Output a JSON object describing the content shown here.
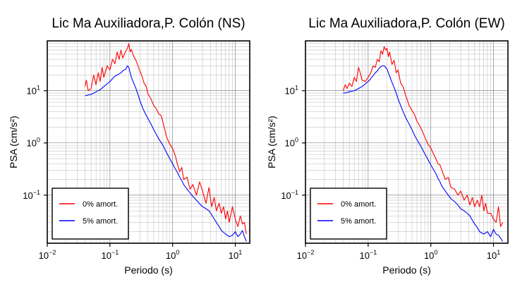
{
  "chart_data": [
    {
      "type": "line",
      "title": "Lic Ma Auxiliadora,P. Colón (NS)",
      "xlabel": "Periodo (s)",
      "ylabel": "PSA (cm/s²)",
      "xscale": "log",
      "yscale": "log",
      "xlim": [
        0.01,
        17
      ],
      "ylim": [
        0.012,
        90
      ],
      "grid": true,
      "legend_position": "lower-left",
      "x_ticks": [
        {
          "value": 0.01,
          "base": "10",
          "exp": "−2"
        },
        {
          "value": 0.1,
          "base": "10",
          "exp": "−1"
        },
        {
          "value": 1,
          "base": "10",
          "exp": "0"
        },
        {
          "value": 10,
          "base": "10",
          "exp": "1"
        }
      ],
      "y_ticks": [
        {
          "value": 0.1,
          "base": "10",
          "exp": "−1"
        },
        {
          "value": 1,
          "base": "10",
          "exp": "0"
        },
        {
          "value": 10,
          "base": "10",
          "exp": "1"
        }
      ],
      "series": [
        {
          "name": "0% amort.",
          "color": "#ff0000",
          "x": [
            0.04,
            0.042,
            0.045,
            0.05,
            0.055,
            0.06,
            0.065,
            0.07,
            0.075,
            0.08,
            0.09,
            0.1,
            0.11,
            0.12,
            0.13,
            0.14,
            0.15,
            0.16,
            0.17,
            0.18,
            0.19,
            0.2,
            0.21,
            0.22,
            0.24,
            0.26,
            0.28,
            0.3,
            0.32,
            0.35,
            0.38,
            0.4,
            0.45,
            0.5,
            0.55,
            0.6,
            0.65,
            0.7,
            0.75,
            0.8,
            0.9,
            1.0,
            1.1,
            1.2,
            1.3,
            1.4,
            1.5,
            1.7,
            1.9,
            2.1,
            2.4,
            2.7,
            3.0,
            3.4,
            3.8,
            4.2,
            4.6,
            5.0,
            5.5,
            6.0,
            6.5,
            7.0,
            7.5,
            8.0,
            9.0,
            10.0,
            11.0,
            12.0,
            13.0,
            14.0,
            15.0
          ],
          "y": [
            12,
            16,
            10,
            11,
            20,
            13,
            22,
            15,
            28,
            18,
            30,
            25,
            40,
            33,
            55,
            40,
            60,
            42,
            50,
            58,
            65,
            80,
            55,
            62,
            45,
            38,
            30,
            24,
            20,
            14,
            12,
            9,
            7,
            5.2,
            4.5,
            3.6,
            3.4,
            2.5,
            1.8,
            1.3,
            0.95,
            0.78,
            0.58,
            0.38,
            0.28,
            0.34,
            0.2,
            0.22,
            0.13,
            0.16,
            0.1,
            0.18,
            0.12,
            0.07,
            0.14,
            0.06,
            0.09,
            0.05,
            0.07,
            0.045,
            0.06,
            0.035,
            0.05,
            0.03,
            0.06,
            0.035,
            0.025,
            0.04,
            0.028,
            0.03,
            0.018
          ]
        },
        {
          "name": "5% amort.",
          "color": "#0000ff",
          "x": [
            0.04,
            0.045,
            0.05,
            0.055,
            0.06,
            0.07,
            0.08,
            0.09,
            0.1,
            0.11,
            0.12,
            0.13,
            0.14,
            0.15,
            0.16,
            0.17,
            0.18,
            0.19,
            0.2,
            0.21,
            0.22,
            0.24,
            0.26,
            0.28,
            0.3,
            0.33,
            0.36,
            0.4,
            0.45,
            0.5,
            0.55,
            0.6,
            0.7,
            0.8,
            0.9,
            1.0,
            1.1,
            1.2,
            1.3,
            1.4,
            1.5,
            1.7,
            1.9,
            2.1,
            2.4,
            2.7,
            3.0,
            3.4,
            3.8,
            4.2,
            4.6,
            5.0,
            5.5,
            6.0,
            7.0,
            8.0,
            9.0,
            10.0,
            11.0,
            12.0,
            13.0,
            14.0,
            15.0
          ],
          "y": [
            8,
            8.3,
            8.5,
            9,
            9.5,
            10.5,
            12,
            13.5,
            15,
            17,
            19,
            20,
            21,
            22,
            24,
            25,
            26,
            30,
            28,
            22,
            18,
            14,
            11,
            8.5,
            6.5,
            4.8,
            3.8,
            3.0,
            2.3,
            1.8,
            1.45,
            1.2,
            0.9,
            0.65,
            0.5,
            0.4,
            0.32,
            0.27,
            0.22,
            0.19,
            0.16,
            0.13,
            0.11,
            0.095,
            0.08,
            0.068,
            0.06,
            0.055,
            0.05,
            0.042,
            0.035,
            0.03,
            0.025,
            0.021,
            0.018,
            0.016,
            0.017,
            0.02,
            0.016,
            0.018,
            0.021,
            0.016,
            0.013
          ]
        }
      ]
    },
    {
      "type": "line",
      "title": "Lic Ma Auxiliadora,P. Colón (EW)",
      "xlabel": "Periodo (s)",
      "ylabel": "PSA (cm/s²)",
      "xscale": "log",
      "yscale": "log",
      "xlim": [
        0.01,
        17
      ],
      "ylim": [
        0.012,
        90
      ],
      "grid": true,
      "legend_position": "lower-left",
      "x_ticks": [
        {
          "value": 0.01,
          "base": "10",
          "exp": "−2"
        },
        {
          "value": 0.1,
          "base": "10",
          "exp": "−1"
        },
        {
          "value": 1,
          "base": "10",
          "exp": "0"
        },
        {
          "value": 10,
          "base": "10",
          "exp": "1"
        }
      ],
      "y_ticks": [
        {
          "value": 0.1,
          "base": "10",
          "exp": "−1"
        },
        {
          "value": 1,
          "base": "10",
          "exp": "0"
        },
        {
          "value": 10,
          "base": "10",
          "exp": "1"
        }
      ],
      "series": [
        {
          "name": "0% amort.",
          "color": "#ff0000",
          "x": [
            0.04,
            0.043,
            0.046,
            0.05,
            0.055,
            0.06,
            0.065,
            0.07,
            0.075,
            0.08,
            0.09,
            0.1,
            0.11,
            0.12,
            0.13,
            0.14,
            0.15,
            0.16,
            0.17,
            0.18,
            0.19,
            0.2,
            0.21,
            0.22,
            0.24,
            0.26,
            0.28,
            0.3,
            0.33,
            0.36,
            0.4,
            0.45,
            0.5,
            0.55,
            0.6,
            0.7,
            0.8,
            0.9,
            1.0,
            1.1,
            1.2,
            1.3,
            1.4,
            1.5,
            1.7,
            1.9,
            2.1,
            2.4,
            2.7,
            3.0,
            3.4,
            3.8,
            4.2,
            4.6,
            5.0,
            5.5,
            6.0,
            6.5,
            7.0,
            7.5,
            8.0,
            9.0,
            10.0,
            11.0,
            12.0,
            13.0,
            14.0
          ],
          "y": [
            10,
            13,
            11,
            14,
            12,
            18,
            15,
            28,
            22,
            16,
            15,
            18,
            22,
            30,
            28,
            40,
            36,
            58,
            50,
            70,
            60,
            65,
            45,
            55,
            32,
            38,
            22,
            25,
            14,
            12,
            8,
            5.2,
            4.2,
            3.5,
            2.6,
            1.9,
            1.3,
            0.95,
            0.8,
            0.62,
            0.5,
            0.4,
            0.38,
            0.3,
            0.2,
            0.22,
            0.14,
            0.13,
            0.1,
            0.12,
            0.08,
            0.1,
            0.065,
            0.09,
            0.06,
            0.08,
            0.06,
            0.1,
            0.05,
            0.07,
            0.045,
            0.045,
            0.035,
            0.03,
            0.06,
            0.025,
            0.03
          ]
        },
        {
          "name": "5% amort.",
          "color": "#0000ff",
          "x": [
            0.04,
            0.045,
            0.05,
            0.055,
            0.06,
            0.07,
            0.08,
            0.09,
            0.1,
            0.11,
            0.12,
            0.13,
            0.14,
            0.15,
            0.16,
            0.17,
            0.18,
            0.19,
            0.2,
            0.21,
            0.22,
            0.24,
            0.26,
            0.28,
            0.3,
            0.33,
            0.36,
            0.4,
            0.45,
            0.5,
            0.55,
            0.6,
            0.7,
            0.8,
            0.9,
            1.0,
            1.1,
            1.2,
            1.3,
            1.4,
            1.5,
            1.7,
            1.9,
            2.1,
            2.4,
            2.7,
            3.0,
            3.4,
            3.8,
            4.2,
            4.6,
            5.0,
            5.5,
            6.0,
            7.0,
            8.0,
            9.0,
            10.0,
            11.0,
            12.0,
            13.0,
            14.0
          ],
          "y": [
            9,
            9.2,
            9.5,
            9.8,
            10,
            11,
            12,
            13.5,
            15,
            17,
            19.5,
            22,
            24,
            27,
            29,
            30,
            30,
            28,
            26,
            22,
            19,
            14.5,
            11.5,
            9,
            7,
            5.2,
            4,
            3,
            2.3,
            1.8,
            1.4,
            1.15,
            0.85,
            0.62,
            0.48,
            0.38,
            0.31,
            0.26,
            0.21,
            0.18,
            0.15,
            0.12,
            0.1,
            0.085,
            0.075,
            0.065,
            0.055,
            0.05,
            0.045,
            0.04,
            0.033,
            0.028,
            0.024,
            0.02,
            0.018,
            0.02,
            0.016,
            0.022,
            0.018,
            0.017,
            0.015,
            0.013
          ]
        }
      ]
    }
  ]
}
